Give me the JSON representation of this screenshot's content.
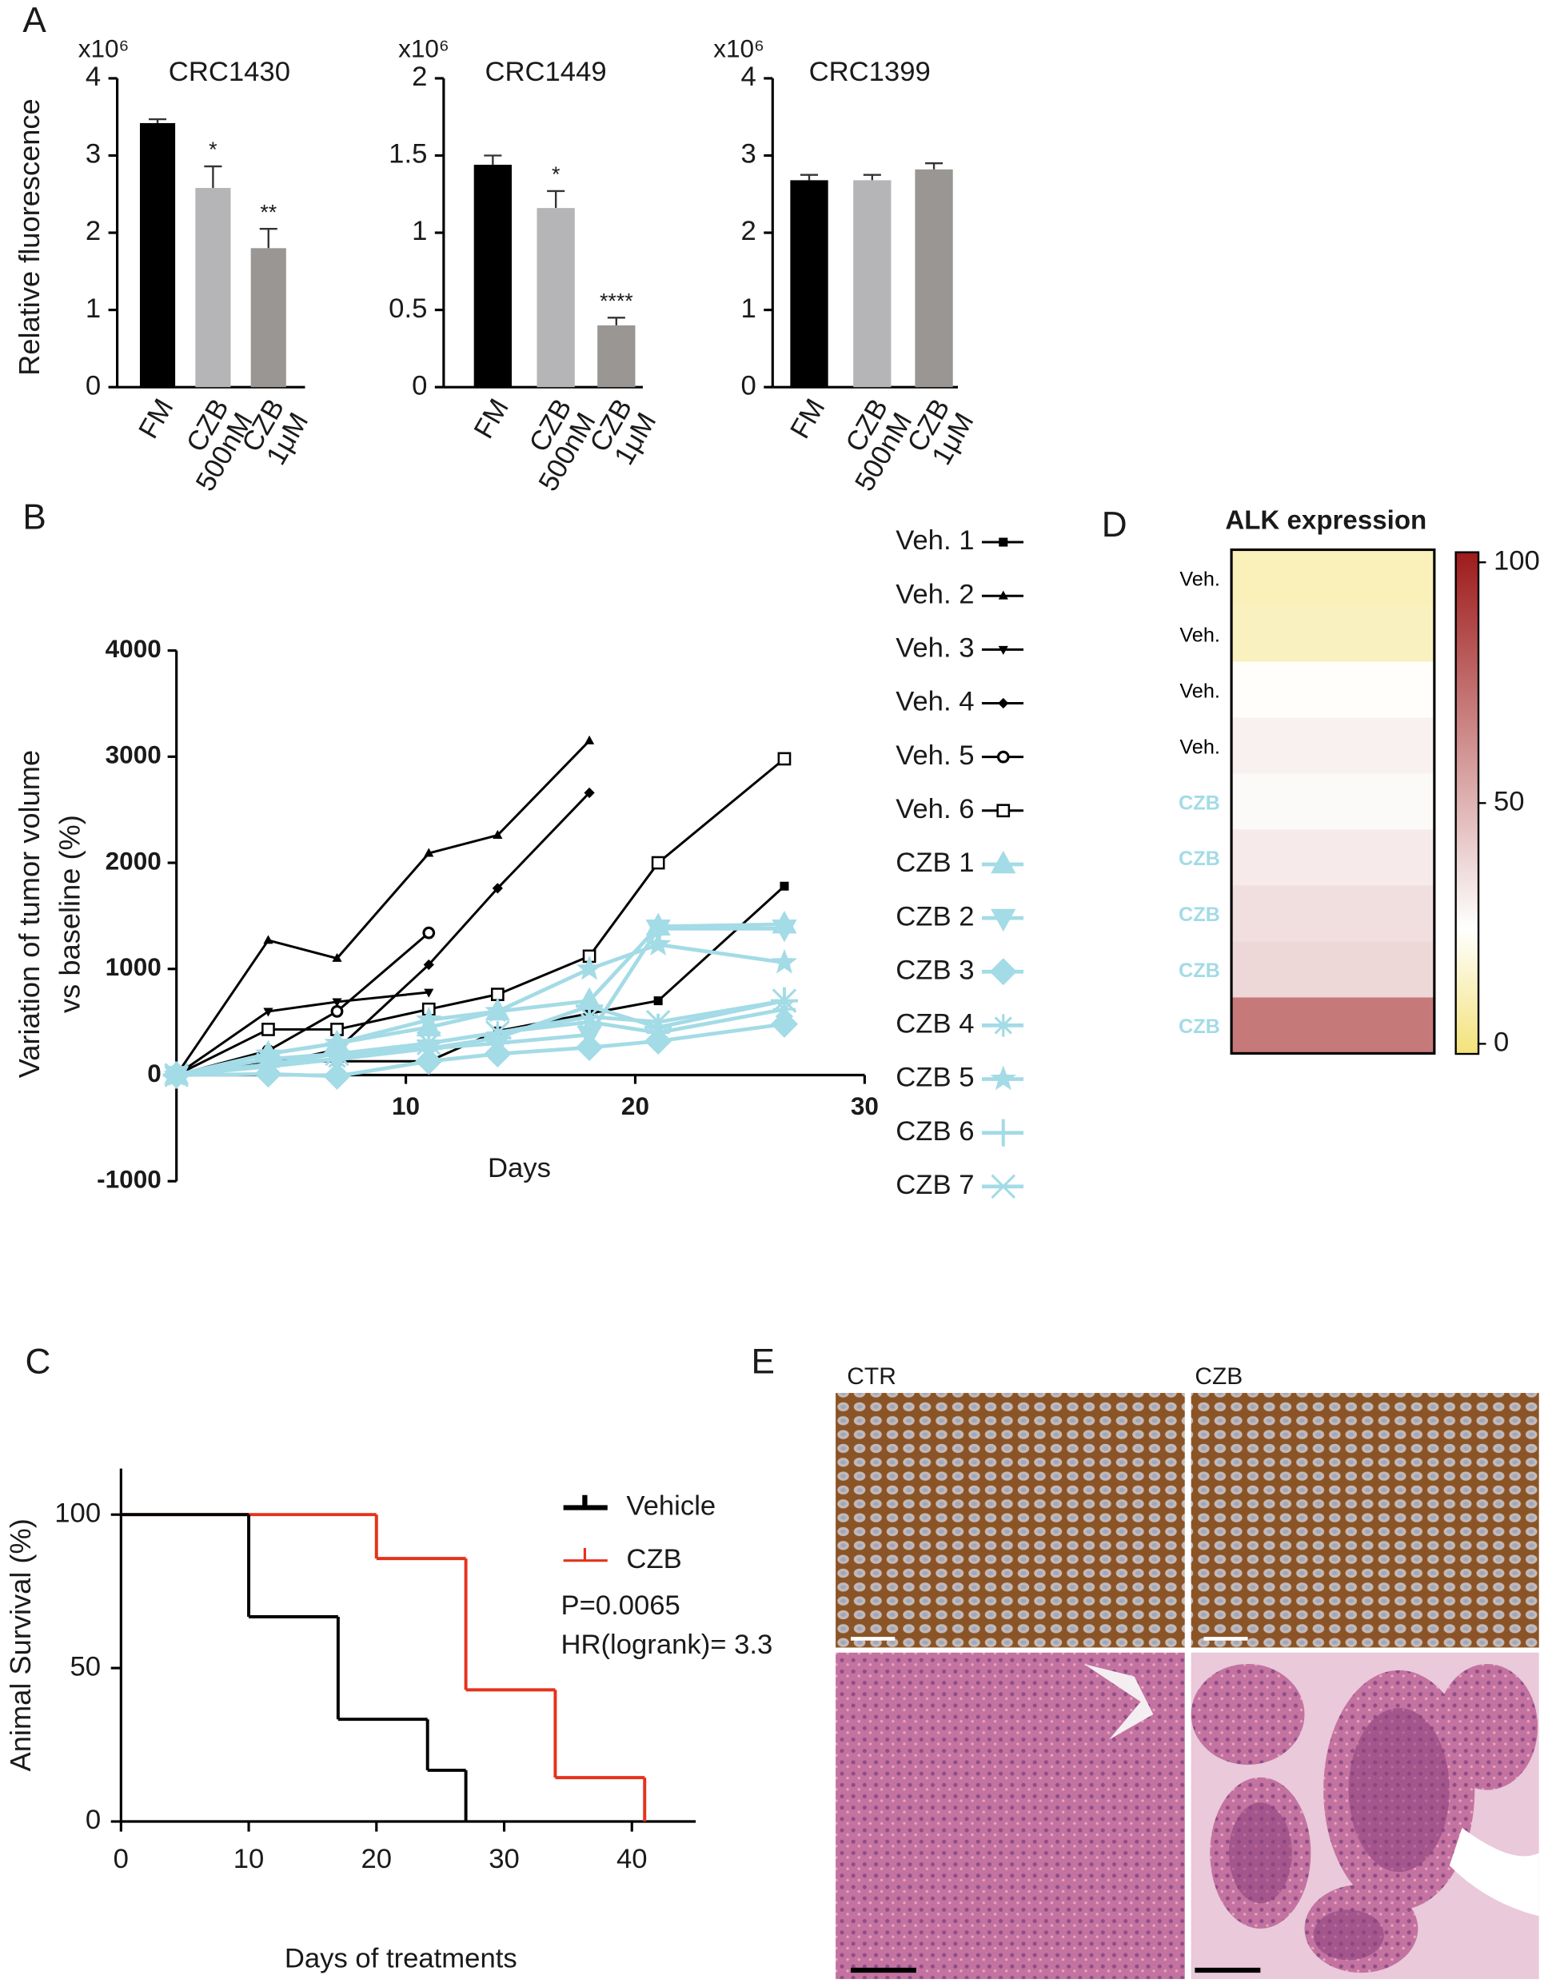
{
  "figure": {
    "panel_labels": [
      "A",
      "B",
      "C",
      "D",
      "E"
    ],
    "image_panel": {
      "column_labels": [
        "CTR",
        "CZB"
      ]
    }
  },
  "chart_data": [
    {
      "type": "bar",
      "title": "CRC1430",
      "ylabel": "Relative fluorescence",
      "y_multiplier": "x10⁶",
      "categories": [
        [
          "FM"
        ],
        [
          "CZB",
          "500nM"
        ],
        [
          "CZB",
          "1μM"
        ]
      ],
      "values": [
        3.42,
        2.58,
        1.8
      ],
      "errors": [
        0.05,
        0.28,
        0.25
      ],
      "significance": [
        null,
        "*",
        "**"
      ],
      "colors": [
        "#000000",
        "#b5b4b6",
        "#999694"
      ],
      "ylim": [
        0,
        4
      ],
      "yticks": [
        0,
        1,
        2,
        3,
        4
      ]
    },
    {
      "type": "bar",
      "title": "CRC1449",
      "y_multiplier": "x10⁶",
      "categories": [
        [
          "FM"
        ],
        [
          "CZB",
          "500nM"
        ],
        [
          "CZB",
          "1μM"
        ]
      ],
      "values": [
        1.44,
        1.16,
        0.4
      ],
      "errors": [
        0.06,
        0.11,
        0.05
      ],
      "significance": [
        null,
        "*",
        "****"
      ],
      "colors": [
        "#000000",
        "#b5b4b6",
        "#999694"
      ],
      "ylim": [
        0,
        2
      ],
      "yticks": [
        0,
        0.5,
        1,
        1.5,
        2
      ]
    },
    {
      "type": "bar",
      "title": "CRC1399",
      "y_multiplier": "x10⁶",
      "categories": [
        [
          "FM"
        ],
        [
          "CZB",
          "500nM"
        ],
        [
          "CZB",
          "1μM"
        ]
      ],
      "values": [
        2.68,
        2.68,
        2.82
      ],
      "errors": [
        0.07,
        0.07,
        0.08
      ],
      "colors": [
        "#000000",
        "#b5b4b6",
        "#999694"
      ],
      "ylim": [
        0,
        4
      ],
      "yticks": [
        0,
        1,
        2,
        3,
        4
      ]
    },
    {
      "type": "line",
      "xlabel": "Days",
      "ylabel": [
        "Variation of tumor volume",
        "vs baseline (%)"
      ],
      "xlim": [
        0,
        30
      ],
      "xticks": [
        10,
        20,
        30
      ],
      "ylim": [
        -1000,
        4000
      ],
      "yticks": [
        -1000,
        0,
        1000,
        2000,
        3000,
        4000
      ],
      "series": [
        {
          "name": "Veh. 1",
          "color": "#000000",
          "marker": "square",
          "marker_size": 3.5,
          "x": [
            0,
            4,
            7,
            11,
            14,
            18,
            21,
            26.5
          ],
          "values": [
            0,
            120,
            130,
            130,
            415,
            580,
            700,
            1780
          ]
        },
        {
          "name": "Veh. 2",
          "color": "#000000",
          "marker": "triangle",
          "marker_size": 3.5,
          "x": [
            0,
            4,
            7,
            11,
            14,
            18
          ],
          "values": [
            0,
            1270,
            1100,
            2090,
            2260,
            3150
          ]
        },
        {
          "name": "Veh. 3",
          "color": "#000000",
          "marker": "triangle-down",
          "marker_size": 3.5,
          "x": [
            0,
            4,
            7,
            11
          ],
          "values": [
            0,
            600,
            690,
            780
          ]
        },
        {
          "name": "Veh. 4",
          "color": "#000000",
          "marker": "diamond",
          "marker_size": 3.5,
          "x": [
            0,
            4,
            7,
            11,
            14,
            18
          ],
          "values": [
            0,
            100,
            240,
            1040,
            1760,
            2660
          ]
        },
        {
          "name": "Veh. 5",
          "color": "#000000",
          "marker": "circle",
          "marker_size": 3.5,
          "x": [
            0,
            4,
            7,
            11
          ],
          "values": [
            0,
            230,
            600,
            1340
          ]
        },
        {
          "name": "Veh. 6",
          "color": "#000000",
          "marker": "square-open",
          "marker_size": 3.5,
          "x": [
            0,
            4,
            7,
            11,
            14,
            18,
            21,
            26.5
          ],
          "values": [
            0,
            430,
            430,
            620,
            760,
            1120,
            2000,
            2980
          ]
        },
        {
          "name": "CZB 1",
          "color": "#a3dbe6",
          "marker": "triangle",
          "marker_size": 9,
          "x": [
            0,
            4,
            7,
            11,
            14,
            18,
            21,
            26.5
          ],
          "values": [
            0,
            200,
            300,
            450,
            600,
            700,
            1400,
            1420
          ]
        },
        {
          "name": "CZB 2",
          "color": "#a3dbe6",
          "marker": "triangle-down",
          "marker_size": 9,
          "x": [
            0,
            4,
            7,
            11,
            14,
            18,
            21,
            26.5
          ],
          "values": [
            0,
            100,
            150,
            250,
            300,
            380,
            1380,
            1380
          ]
        },
        {
          "name": "CZB 3",
          "color": "#a3dbe6",
          "marker": "diamond",
          "marker_size": 9,
          "x": [
            0,
            4,
            7,
            11,
            14,
            18,
            21,
            26.5
          ],
          "values": [
            0,
            10,
            -10,
            130,
            200,
            260,
            320,
            480
          ]
        },
        {
          "name": "CZB 4",
          "color": "#a3dbe6",
          "marker": "asterisk",
          "marker_size": 9,
          "x": [
            0,
            4,
            7,
            11,
            14,
            18,
            21,
            26.5
          ],
          "values": [
            0,
            80,
            150,
            300,
            400,
            500,
            400,
            620
          ]
        },
        {
          "name": "CZB 5",
          "color": "#a3dbe6",
          "marker": "star",
          "marker_size": 9,
          "x": [
            0,
            4,
            7,
            11,
            14,
            18,
            21,
            26.5
          ],
          "values": [
            0,
            200,
            300,
            520,
            600,
            1000,
            1230,
            1060
          ]
        },
        {
          "name": "CZB 6",
          "color": "#a3dbe6",
          "marker": "plus",
          "marker_size": 9,
          "x": [
            0,
            4,
            7,
            11,
            14,
            18,
            21,
            26.5
          ],
          "values": [
            0,
            150,
            200,
            250,
            350,
            650,
            450,
            700
          ]
        },
        {
          "name": "CZB 7",
          "color": "#a3dbe6",
          "marker": "x",
          "marker_size": 9,
          "x": [
            0,
            4,
            7,
            11,
            14,
            18,
            21,
            26.5
          ],
          "values": [
            0,
            100,
            200,
            300,
            400,
            550,
            500,
            700
          ]
        }
      ]
    },
    {
      "type": "survival",
      "xlabel": "Days of treatments",
      "ylabel": "Animal Survival (%)",
      "xlim": [
        0,
        45
      ],
      "xticks": [
        0,
        10,
        20,
        30,
        40
      ],
      "ylim": [
        0,
        115
      ],
      "yticks": [
        0,
        50,
        100
      ],
      "series": [
        {
          "name": "Vehicle",
          "color": "#000000",
          "x": [
            0,
            10,
            17,
            24,
            27
          ],
          "values": [
            100,
            66.7,
            33.3,
            16.7,
            0
          ]
        },
        {
          "name": "CZB",
          "color": "#e5321b",
          "x": [
            0,
            20,
            27,
            34,
            41
          ],
          "values": [
            100,
            85.7,
            42.9,
            14.3,
            0
          ]
        }
      ],
      "annotations": [
        "P=0.0065",
        "HR(logrank)= 3.3"
      ]
    },
    {
      "type": "heatmap",
      "title": "ALK expression",
      "rows": [
        "Veh.",
        "Veh.",
        "Veh.",
        "Veh.",
        "CZB",
        "CZB",
        "CZB",
        "CZB",
        "CZB"
      ],
      "row_colors": [
        "#000000",
        "#000000",
        "#000000",
        "#000000",
        "#a3dbe6",
        "#a3dbe6",
        "#a3dbe6",
        "#a3dbe6",
        "#a3dbe6"
      ],
      "values": [
        12,
        13,
        24,
        30,
        27,
        32,
        36,
        38,
        69
      ],
      "clim": [
        0,
        100
      ],
      "cticks": [
        0,
        50,
        100
      ],
      "colorscale": [
        [
          0,
          "#f3e27a"
        ],
        [
          25,
          "#ffffff"
        ],
        [
          100,
          "#9e1b1b"
        ]
      ]
    }
  ]
}
